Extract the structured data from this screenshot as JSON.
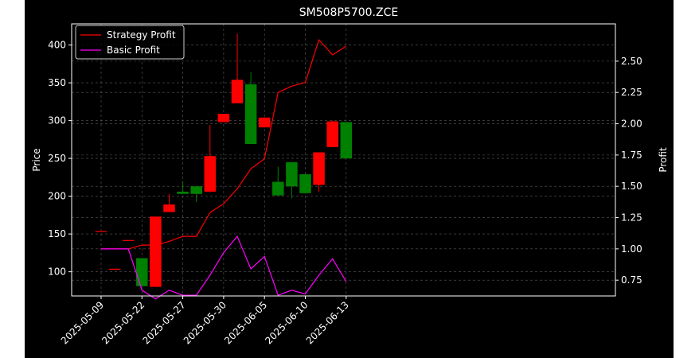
{
  "chart_data": {
    "type": "candlestick+line",
    "title": "SM508P5700.ZCE",
    "ylabel_left": "Price",
    "ylabel_right": "Profit",
    "xlabel": "",
    "ylim_left": [
      68,
      428
    ],
    "ylim_right": [
      0.624,
      2.798
    ],
    "left_ticks": [
      100,
      150,
      200,
      250,
      300,
      350,
      400
    ],
    "right_ticks": [
      "0.75",
      "1.00",
      "1.25",
      "1.50",
      "1.75",
      "2.00",
      "2.25",
      "2.50"
    ],
    "x_tick_labels": [
      {
        "i": 0,
        "label": "2025-05-09"
      },
      {
        "i": 3,
        "label": "2025-05-22"
      },
      {
        "i": 6,
        "label": "2025-05-27"
      },
      {
        "i": 9,
        "label": "2025-05-30"
      },
      {
        "i": 12,
        "label": "2025-06-05"
      },
      {
        "i": 15,
        "label": "2025-06-10"
      },
      {
        "i": 18,
        "label": "2025-06-13"
      }
    ],
    "grid": true,
    "legend_position": "top-left",
    "colors": {
      "up": "#008000",
      "down": "#ff0000",
      "strategy": "#ff0000",
      "basic": "#ff00ff",
      "background": "#000000",
      "grid": "#808080"
    },
    "candles": [
      {
        "open": 154,
        "close": 154,
        "high": 154,
        "low": 154
      },
      {
        "open": 104,
        "close": 104,
        "high": 104,
        "low": 104
      },
      {
        "open": 142,
        "close": 142,
        "high": 142,
        "low": 142
      },
      {
        "open": 81,
        "close": 118,
        "high": 118,
        "low": 81
      },
      {
        "open": 173,
        "close": 80,
        "high": 173,
        "low": 80
      },
      {
        "open": 189,
        "close": 179,
        "high": 203,
        "low": 179
      },
      {
        "open": 203,
        "close": 206,
        "high": 220,
        "low": 203
      },
      {
        "open": 203,
        "close": 213,
        "high": 213,
        "low": 192
      },
      {
        "open": 253,
        "close": 206,
        "high": 294,
        "low": 205
      },
      {
        "open": 309,
        "close": 298,
        "high": 309,
        "low": 298
      },
      {
        "open": 354,
        "close": 323,
        "high": 415,
        "low": 323
      },
      {
        "open": 269,
        "close": 348,
        "high": 364,
        "low": 269
      },
      {
        "open": 304,
        "close": 291,
        "high": 304,
        "low": 291
      },
      {
        "open": 201,
        "close": 219,
        "high": 239,
        "low": 201
      },
      {
        "open": 213,
        "close": 245,
        "high": 245,
        "low": 197
      },
      {
        "open": 204,
        "close": 229,
        "high": 229,
        "low": 204
      },
      {
        "open": 258,
        "close": 215,
        "high": 258,
        "low": 206
      },
      {
        "open": 299,
        "close": 265,
        "high": 300,
        "low": 265
      },
      {
        "open": 250,
        "close": 298,
        "high": 298,
        "low": 250
      }
    ],
    "series": [
      {
        "name": "Strategy Profit",
        "values": [
          1.0,
          1.0,
          1.0,
          1.03,
          1.03,
          1.06,
          1.1,
          1.1,
          1.29,
          1.36,
          1.48,
          1.64,
          1.72,
          2.25,
          2.3,
          2.33,
          2.67,
          2.55,
          2.62
        ]
      },
      {
        "name": "Basic Profit",
        "values": [
          1.0,
          1.0,
          1.0,
          0.67,
          0.6,
          0.67,
          0.63,
          0.63,
          0.79,
          0.97,
          1.1,
          0.84,
          0.94,
          0.63,
          0.67,
          0.64,
          0.79,
          0.92,
          0.74
        ]
      }
    ]
  }
}
